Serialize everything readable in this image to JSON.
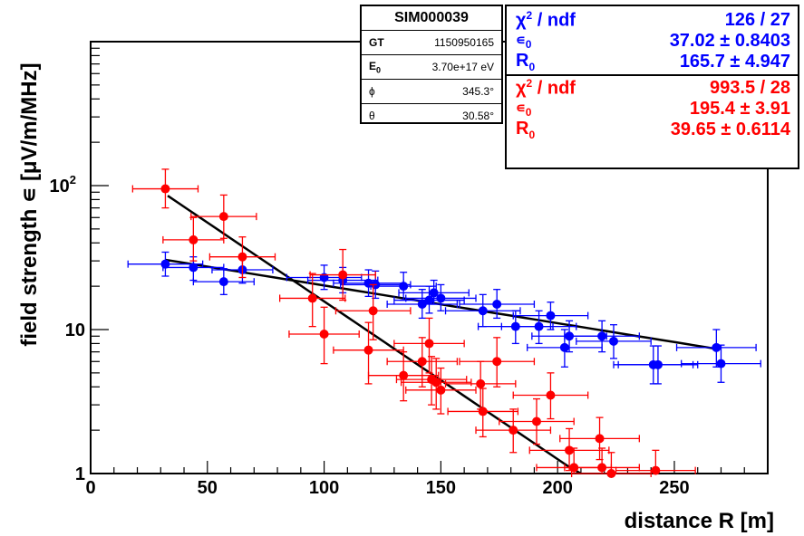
{
  "chart_data": {
    "type": "scatter",
    "xlabel": "distance R [m]",
    "ylabel": "field strength ∊ [μV/m/MHz]",
    "xlim": [
      0,
      290
    ],
    "ylim": [
      1,
      1000
    ],
    "y_scale": "log",
    "x_ticks": [
      0,
      50,
      100,
      150,
      200,
      250
    ],
    "y_ticks": [
      {
        "value": 1,
        "label": "1"
      },
      {
        "value": 10,
        "label": "10"
      },
      {
        "value": 100,
        "label": "10",
        "sup": "2"
      }
    ],
    "series": [
      {
        "color": "#0000ff",
        "points": [
          {
            "x": 32,
            "y": 28.5,
            "xerr": 16,
            "yerr": [
              5,
              6
            ]
          },
          {
            "x": 44,
            "y": 27,
            "xerr": 13,
            "yerr": [
              5,
              5
            ]
          },
          {
            "x": 57,
            "y": 21.5,
            "xerr": 13,
            "yerr": [
              4,
              5
            ]
          },
          {
            "x": 65,
            "y": 26,
            "xerr": 13,
            "yerr": [
              5,
              5
            ]
          },
          {
            "x": 100,
            "y": 23,
            "xerr": 16,
            "yerr": [
              4,
              5
            ]
          },
          {
            "x": 108,
            "y": 22,
            "xerr": 15,
            "yerr": [
              4,
              5
            ]
          },
          {
            "x": 119,
            "y": 21,
            "xerr": 15,
            "yerr": [
              4,
              5
            ]
          },
          {
            "x": 122,
            "y": 20.5,
            "xerr": 15,
            "yerr": [
              4,
              5
            ]
          },
          {
            "x": 134,
            "y": 20,
            "xerr": 14,
            "yerr": [
              4,
              5
            ]
          },
          {
            "x": 142,
            "y": 15,
            "xerr": 15,
            "yerr": [
              3,
              4
            ]
          },
          {
            "x": 145,
            "y": 16,
            "xerr": 15,
            "yerr": [
              3,
              4
            ]
          },
          {
            "x": 147,
            "y": 18,
            "xerr": 15,
            "yerr": [
              3,
              4
            ]
          },
          {
            "x": 150,
            "y": 16.5,
            "xerr": 15,
            "yerr": [
              3,
              4
            ]
          },
          {
            "x": 168,
            "y": 13.5,
            "xerr": 16,
            "yerr": [
              3,
              4
            ]
          },
          {
            "x": 174,
            "y": 15,
            "xerr": 16,
            "yerr": [
              3,
              4
            ]
          },
          {
            "x": 182,
            "y": 10.5,
            "xerr": 16,
            "yerr": [
              2.5,
              3
            ]
          },
          {
            "x": 192,
            "y": 10.5,
            "xerr": 16,
            "yerr": [
              2.5,
              3
            ]
          },
          {
            "x": 197,
            "y": 12.5,
            "xerr": 16,
            "yerr": [
              2.5,
              3
            ]
          },
          {
            "x": 203,
            "y": 7.5,
            "xerr": 16,
            "yerr": [
              2,
              2.5
            ]
          },
          {
            "x": 205,
            "y": 9,
            "xerr": 16,
            "yerr": [
              2,
              2.5
            ]
          },
          {
            "x": 219,
            "y": 9,
            "xerr": 16,
            "yerr": [
              2,
              2.5
            ]
          },
          {
            "x": 224,
            "y": 8.3,
            "xerr": 16,
            "yerr": [
              2,
              2.5
            ]
          },
          {
            "x": 241,
            "y": 5.7,
            "xerr": 17,
            "yerr": [
              1.5,
              2
            ]
          },
          {
            "x": 243,
            "y": 5.7,
            "xerr": 17,
            "yerr": [
              1.5,
              2
            ]
          },
          {
            "x": 268,
            "y": 7.5,
            "xerr": 17,
            "yerr": [
              2,
              2.5
            ]
          },
          {
            "x": 270,
            "y": 5.8,
            "xerr": 17,
            "yerr": [
              1.5,
              2
            ]
          }
        ],
        "fit": {
          "chi2_ndf": "126 / 27",
          "eps0": "37.02 ± 0.8403",
          "R0": "165.7 ± 4.947",
          "A": 37.02,
          "R": 165.7,
          "x_range": [
            32,
            268
          ]
        }
      },
      {
        "color": "#ff0000",
        "points": [
          {
            "x": 32,
            "y": 95,
            "xerr": 14,
            "yerr": [
              25,
              35
            ]
          },
          {
            "x": 44,
            "y": 42,
            "xerr": 13,
            "yerr": [
              12,
              18
            ]
          },
          {
            "x": 57,
            "y": 61,
            "xerr": 14,
            "yerr": [
              18,
              25
            ]
          },
          {
            "x": 65,
            "y": 32,
            "xerr": 14,
            "yerr": [
              9,
              12
            ]
          },
          {
            "x": 95,
            "y": 16.5,
            "xerr": 14,
            "yerr": [
              6,
              8
            ]
          },
          {
            "x": 100,
            "y": 9.3,
            "xerr": 15,
            "yerr": [
              3.5,
              5
            ]
          },
          {
            "x": 108,
            "y": 24,
            "xerr": 14,
            "yerr": [
              8,
              12
            ]
          },
          {
            "x": 119,
            "y": 7.2,
            "xerr": 15,
            "yerr": [
              3,
              4
            ]
          },
          {
            "x": 121,
            "y": 13.5,
            "xerr": 16,
            "yerr": [
              5,
              7
            ]
          },
          {
            "x": 134,
            "y": 4.8,
            "xerr": 15,
            "yerr": [
              1.6,
              2.2
            ]
          },
          {
            "x": 142,
            "y": 6,
            "xerr": 15,
            "yerr": [
              2,
              2.8
            ]
          },
          {
            "x": 145,
            "y": 8,
            "xerr": 15,
            "yerr": [
              3,
              4
            ]
          },
          {
            "x": 146,
            "y": 4.5,
            "xerr": 15,
            "yerr": [
              1.5,
              2
            ]
          },
          {
            "x": 148,
            "y": 4.3,
            "xerr": 15,
            "yerr": [
              1.5,
              2
            ]
          },
          {
            "x": 150,
            "y": 3.8,
            "xerr": 15,
            "yerr": [
              1.2,
              1.6
            ]
          },
          {
            "x": 167,
            "y": 4.2,
            "xerr": 15,
            "yerr": [
              1.4,
              1.8
            ]
          },
          {
            "x": 168,
            "y": 2.7,
            "xerr": 15,
            "yerr": [
              0.9,
              1.2
            ]
          },
          {
            "x": 174,
            "y": 6,
            "xerr": 16,
            "yerr": [
              2,
              2.8
            ]
          },
          {
            "x": 181,
            "y": 2,
            "xerr": 16,
            "yerr": [
              0.6,
              0.8
            ]
          },
          {
            "x": 191,
            "y": 2.3,
            "xerr": 16,
            "yerr": [
              0.7,
              1
            ]
          },
          {
            "x": 197,
            "y": 3.5,
            "xerr": 16,
            "yerr": [
              1.1,
              1.5
            ]
          },
          {
            "x": 205,
            "y": 1.45,
            "xerr": 17,
            "yerr": [
              0.4,
              0.6
            ]
          },
          {
            "x": 207,
            "y": 1.1,
            "xerr": 16,
            "yerr": [
              0.3,
              0.4
            ]
          },
          {
            "x": 218,
            "y": 1.75,
            "xerr": 17,
            "yerr": [
              0.5,
              0.7
            ]
          },
          {
            "x": 219,
            "y": 1.1,
            "xerr": 16,
            "yerr": [
              0.3,
              0.4
            ]
          },
          {
            "x": 223,
            "y": 1.0,
            "xerr": 17,
            "yerr": [
              0.3,
              0.4
            ]
          },
          {
            "x": 242,
            "y": 1.05,
            "xerr": 17,
            "yerr": [
              0.3,
              0.4
            ]
          }
        ],
        "fit": {
          "chi2_ndf": "993.5 / 28",
          "eps0": "195.4 ±  3.91",
          "R0": "39.65 ± 0.6114",
          "A": 195.4,
          "R": 39.65,
          "x_range": [
            33,
            210
          ]
        }
      }
    ]
  },
  "sim_box": {
    "title": "SIM000039",
    "rows": [
      {
        "label": "GT",
        "value": "1150950165"
      },
      {
        "label": "E",
        "label_sub": "0",
        "value": "3.70e+17 eV"
      },
      {
        "label": "ϕ",
        "value": "345.3°"
      },
      {
        "label": "θ",
        "value": "30.58°"
      }
    ]
  },
  "fit_box": {
    "blue_color": "#0000ff",
    "red_color": "#ff0000",
    "chi_label": "χ",
    "chi_sup": "2",
    "ndf_label": " / ndf",
    "eps_label": "∊",
    "eps_sub": "0",
    "r_label": "R",
    "r_sub": "0"
  }
}
